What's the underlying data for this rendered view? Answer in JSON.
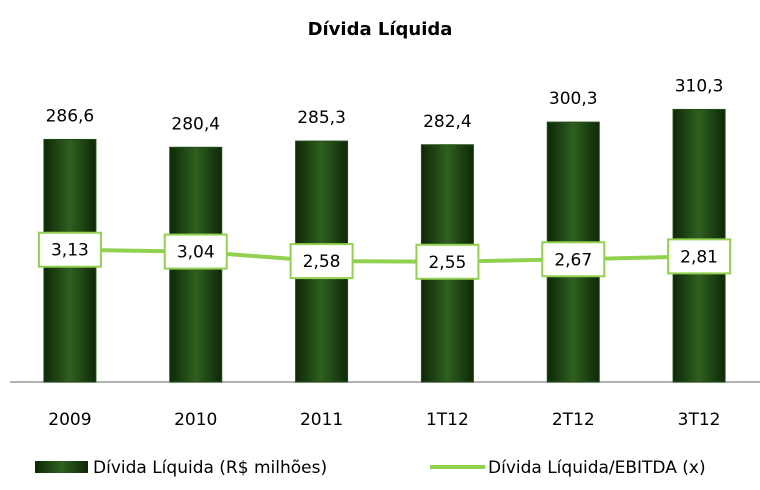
{
  "chart_data": {
    "type": "bar-line",
    "title": "Dívida Líquida",
    "categories": [
      "2009",
      "2010",
      "2011",
      "1T12",
      "2T12",
      "3T12"
    ],
    "series": [
      {
        "name": "Dívida Líquida (R$ milhões)",
        "type": "bar",
        "color": "#1f4d14",
        "values": [
          286.6,
          280.4,
          285.3,
          282.4,
          300.3,
          310.3
        ],
        "value_labels": [
          "286,6",
          "280,4",
          "285,3",
          "282,4",
          "300,3",
          "310,3"
        ]
      },
      {
        "name": "Dívida Líquida/EBITDA (x)",
        "type": "line",
        "axis": "y2",
        "color": "#92d050",
        "values": [
          3.13,
          3.04,
          2.58,
          2.55,
          2.67,
          2.81
        ],
        "value_labels": [
          "3,13",
          "3,04",
          "2,58",
          "2,55",
          "2,67",
          "2,81"
        ]
      }
    ],
    "ylim": [
      95,
      330
    ],
    "y2lim": [
      -3.25,
      11.1
    ],
    "legend": "bottom"
  }
}
